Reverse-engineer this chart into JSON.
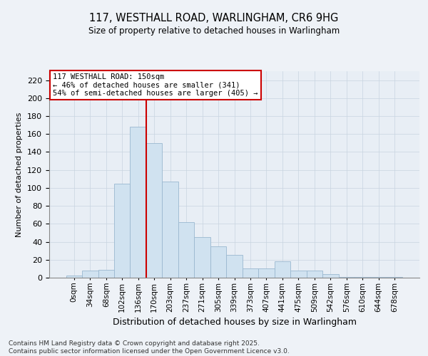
{
  "title": "117, WESTHALL ROAD, WARLINGHAM, CR6 9HG",
  "subtitle": "Size of property relative to detached houses in Warlingham",
  "xlabel": "Distribution of detached houses by size in Warlingham",
  "ylabel": "Number of detached properties",
  "bar_color": "#d0e2f0",
  "bar_edge_color": "#9ab8d0",
  "marker_color": "#cc0000",
  "annotation_box_color": "#cc0000",
  "categories": [
    "0sqm",
    "34sqm",
    "68sqm",
    "102sqm",
    "136sqm",
    "170sqm",
    "203sqm",
    "237sqm",
    "271sqm",
    "305sqm",
    "339sqm",
    "373sqm",
    "407sqm",
    "441sqm",
    "475sqm",
    "509sqm",
    "542sqm",
    "576sqm",
    "610sqm",
    "644sqm",
    "678sqm"
  ],
  "values": [
    2,
    8,
    9,
    105,
    168,
    150,
    107,
    62,
    45,
    35,
    25,
    10,
    10,
    18,
    8,
    8,
    4,
    1,
    1,
    1,
    1
  ],
  "property_bin_index": 5,
  "annotation_text": "117 WESTHALL ROAD: 150sqm\n← 46% of detached houses are smaller (341)\n54% of semi-detached houses are larger (405) →",
  "ylim": [
    0,
    230
  ],
  "yticks": [
    0,
    20,
    40,
    60,
    80,
    100,
    120,
    140,
    160,
    180,
    200,
    220
  ],
  "footer_text": "Contains HM Land Registry data © Crown copyright and database right 2025.\nContains public sector information licensed under the Open Government Licence v3.0.",
  "background_color": "#eef2f7",
  "plot_bg_color": "#e8eef5",
  "grid_color": "#c8d4e0"
}
